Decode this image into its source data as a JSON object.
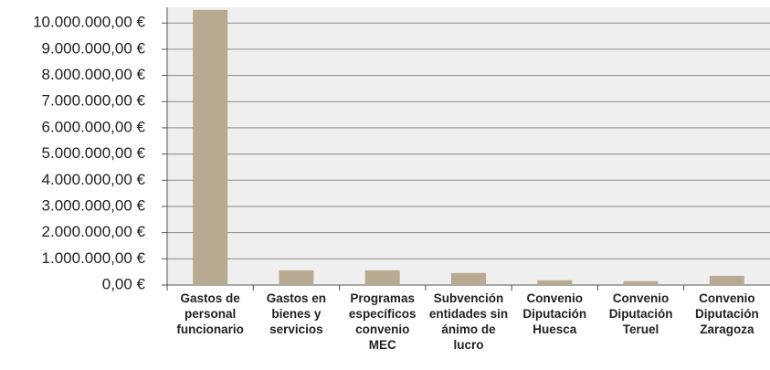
{
  "chart_data": {
    "type": "bar",
    "categories": [
      "Gastos de personal funcionario",
      "Gastos en bienes y servicios",
      "Programas específicos convenio MEC",
      "Subvención entidades sin ánimo de lucro",
      "Convenio Diputación Huesca",
      "Convenio Diputación Teruel",
      "Convenio Diputación Zaragoza"
    ],
    "values": [
      10500000,
      560000,
      560000,
      460000,
      180000,
      150000,
      350000
    ],
    "color": "#b8aa90",
    "ylim": [
      0,
      10600000
    ],
    "yticks": [
      {
        "value": 0,
        "label": "0,00 €"
      },
      {
        "value": 1000000,
        "label": "1.000.000,00 €"
      },
      {
        "value": 2000000,
        "label": "2.000.000,00 €"
      },
      {
        "value": 3000000,
        "label": "3.000.000,00 €"
      },
      {
        "value": 4000000,
        "label": "4.000.000,00 €"
      },
      {
        "value": 5000000,
        "label": "5.000.000,00 €"
      },
      {
        "value": 6000000,
        "label": "6.000.000,00 €"
      },
      {
        "value": 7000000,
        "label": "7.000.000,00 €"
      },
      {
        "value": 8000000,
        "label": "8.000.000,00 €"
      },
      {
        "value": 9000000,
        "label": "9.000.000,00 €"
      },
      {
        "value": 10000000,
        "label": "10.000.000,00 €"
      }
    ],
    "grid": true
  }
}
